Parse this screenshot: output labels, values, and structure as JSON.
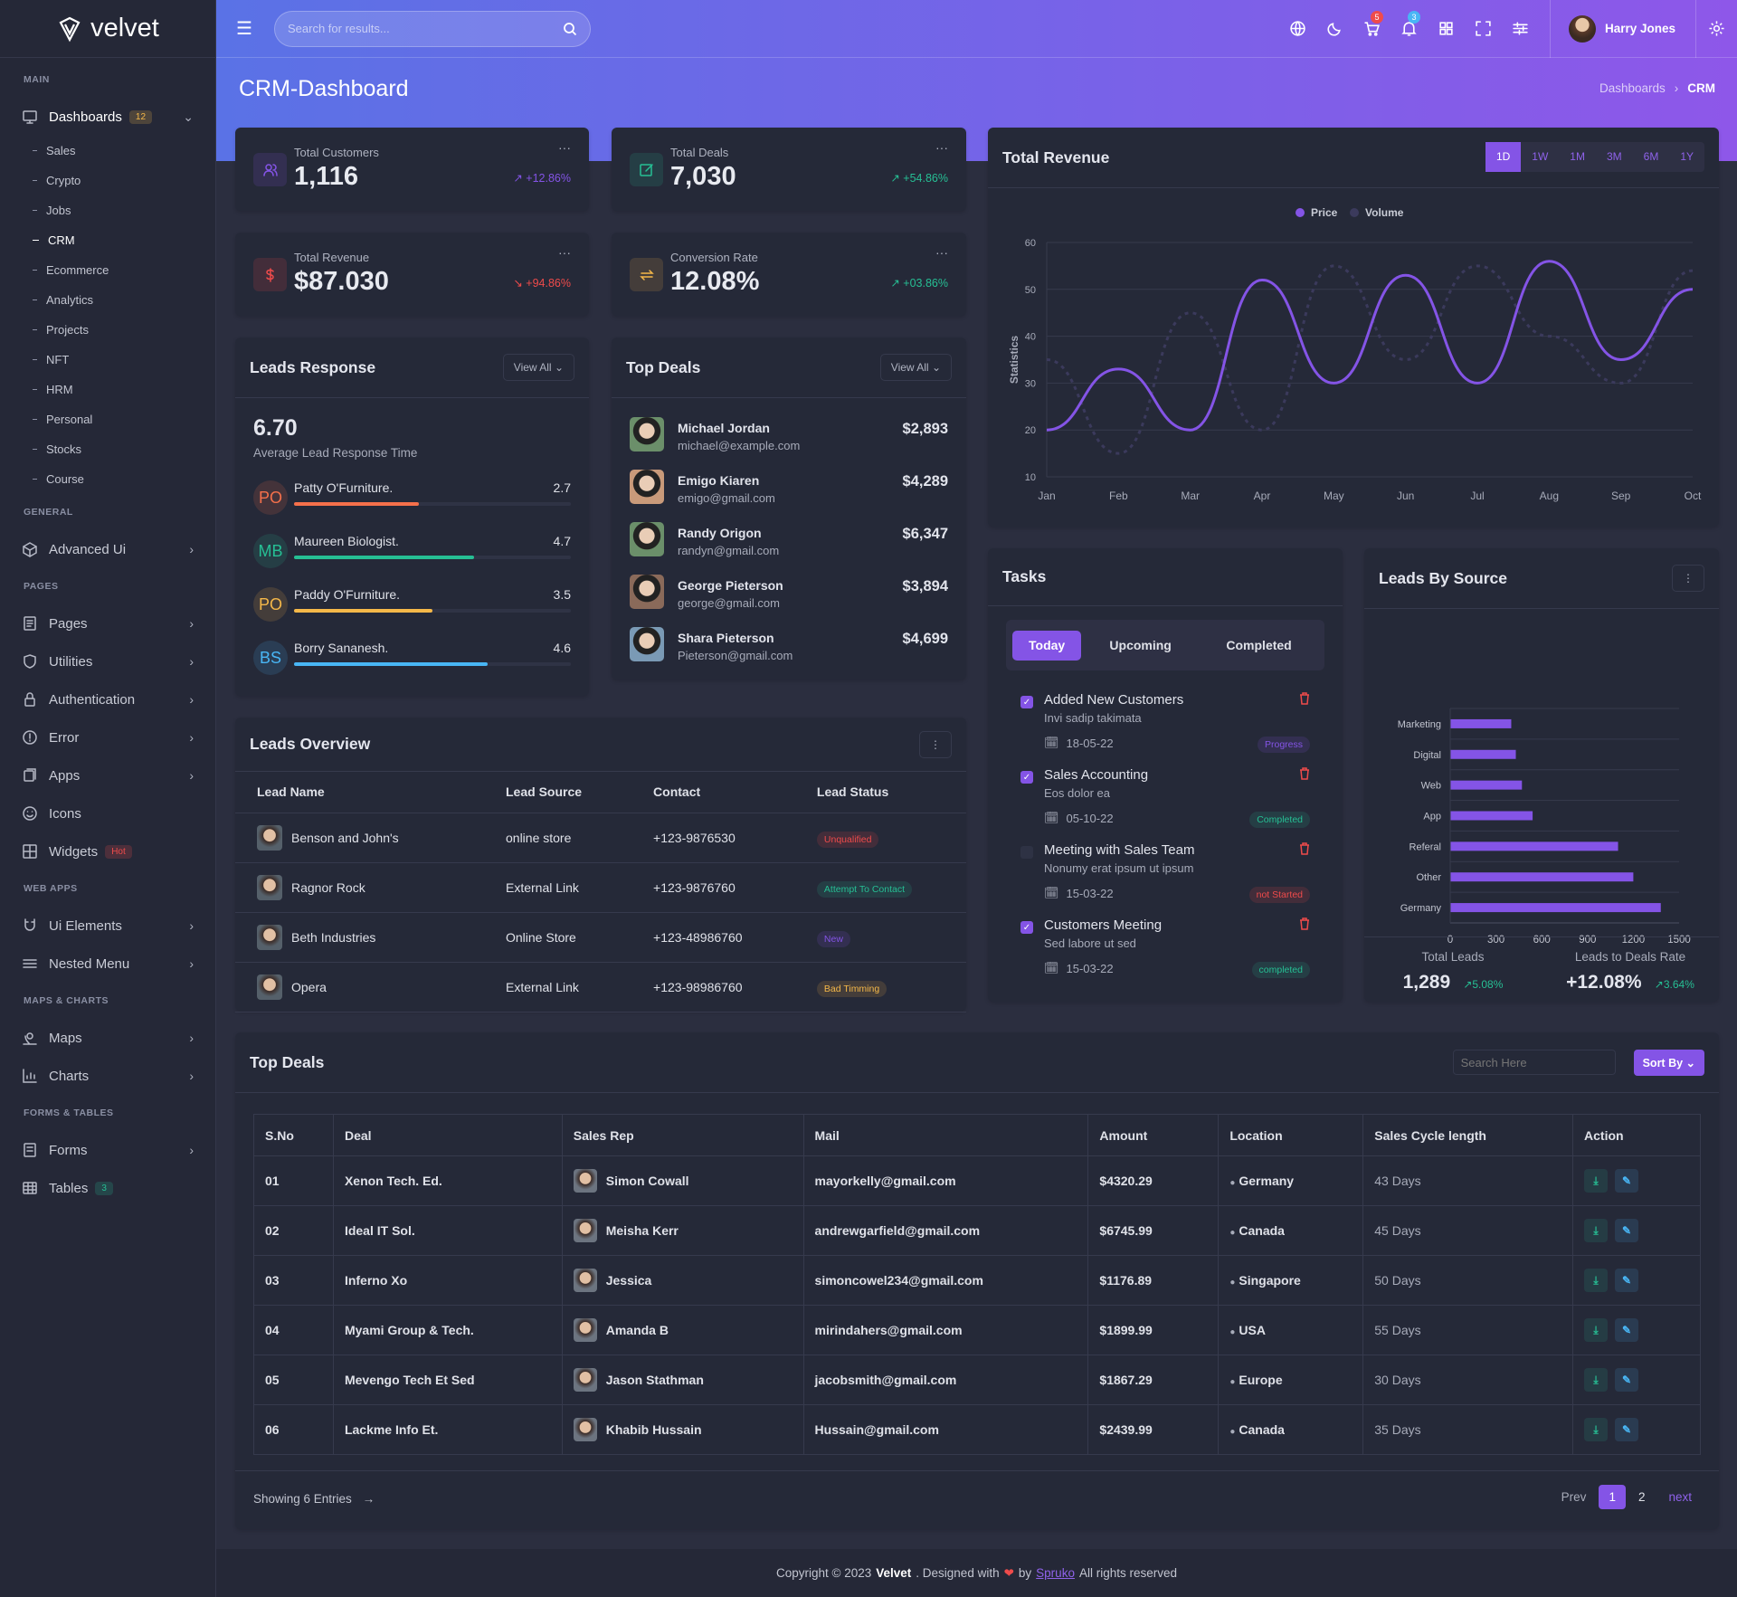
{
  "app": {
    "logo": "velvet",
    "search_placeholder": "Search for results..."
  },
  "colors": {
    "primary": "#8454e6",
    "success": "#26bf94",
    "danger": "#ef4b4b",
    "warning": "#f5b849",
    "info": "#49b6f5"
  },
  "header": {
    "icons": [
      {
        "name": "globe-icon"
      },
      {
        "name": "moon-icon"
      },
      {
        "name": "cart-icon",
        "count": "5",
        "color": "#ef4b4b"
      },
      {
        "name": "bell-icon",
        "count": "3",
        "color": "#49b6f5"
      },
      {
        "name": "apps-grid-icon"
      },
      {
        "name": "fullscreen-icon"
      },
      {
        "name": "sliders-icon"
      }
    ],
    "user": "Harry Jones"
  },
  "page": {
    "title": "CRM-Dashboard",
    "breadcrumb": [
      "Dashboards",
      "CRM"
    ]
  },
  "sidebar": [
    {
      "section": "MAIN"
    },
    {
      "label": "Dashboards",
      "icon": "monitor-icon",
      "badge": "12",
      "badge_color": "#f5b849",
      "open": true,
      "children": [
        "Sales",
        "Crypto",
        "Jobs",
        "CRM",
        "Ecommerce",
        "Analytics",
        "Projects",
        "NFT",
        "HRM",
        "Personal",
        "Stocks",
        "Course"
      ],
      "active": "CRM"
    },
    {
      "section": "GENERAL"
    },
    {
      "label": "Advanced Ui",
      "icon": "cube-icon",
      "chevron": true
    },
    {
      "section": "PAGES"
    },
    {
      "label": "Pages",
      "icon": "file-icon",
      "chevron": true
    },
    {
      "label": "Utilities",
      "icon": "shield-icon",
      "chevron": true
    },
    {
      "label": "Authentication",
      "icon": "lock-icon",
      "chevron": true
    },
    {
      "label": "Error",
      "icon": "alert-circle-icon",
      "chevron": true
    },
    {
      "label": "Apps",
      "icon": "layers-icon",
      "chevron": true
    },
    {
      "label": "Icons",
      "icon": "smile-icon"
    },
    {
      "label": "Widgets",
      "icon": "widgets-icon",
      "badge": "Hot",
      "badge_color": "#ef4b4b"
    },
    {
      "section": "WEB APPS"
    },
    {
      "label": "Ui Elements",
      "icon": "magnet-icon",
      "chevron": true
    },
    {
      "label": "Nested Menu",
      "icon": "menu-icon",
      "chevron": true
    },
    {
      "section": "MAPS & CHARTS"
    },
    {
      "label": "Maps",
      "icon": "map-pin-icon",
      "chevron": true
    },
    {
      "label": "Charts",
      "icon": "chart-icon",
      "chevron": true
    },
    {
      "section": "FORMS & TABLES"
    },
    {
      "label": "Forms",
      "icon": "form-icon",
      "chevron": true
    },
    {
      "label": "Tables",
      "icon": "table-icon",
      "badge": "3",
      "badge_color": "#26bf94"
    }
  ],
  "stats": [
    {
      "title": "Total Customers",
      "value": "1,116",
      "change": "+12.86%",
      "trend": "up",
      "color": "#8454e6",
      "icon": "users-icon"
    },
    {
      "title": "Total Deals",
      "value": "7,030",
      "change": "+54.86%",
      "trend": "up",
      "color": "#26bf94",
      "icon": "edit-icon"
    },
    {
      "title": "Total Revenue",
      "value": "$87.030",
      "change": "+94.86%",
      "trend": "down",
      "color": "#ef4b4b",
      "icon": "dollar-icon"
    },
    {
      "title": "Conversion Rate",
      "value": "12.08%",
      "change": "+03.86%",
      "trend": "up",
      "color": "#f5b849",
      "icon": "exchange-icon"
    }
  ],
  "leads_response": {
    "title": "Leads Response",
    "view_all": "View All",
    "value": "6.70",
    "caption": "Average Lead Response Time",
    "items": [
      {
        "initials": "PO",
        "name": "Patty O'Furniture.",
        "score": "2.7",
        "pct": 45,
        "color": "#f5704b"
      },
      {
        "initials": "MB",
        "name": "Maureen Biologist.",
        "score": "4.7",
        "pct": 65,
        "color": "#26bf94"
      },
      {
        "initials": "PO",
        "name": "Paddy O'Furniture.",
        "score": "3.5",
        "pct": 50,
        "color": "#f5b849"
      },
      {
        "initials": "BS",
        "name": "Borry Sananesh.",
        "score": "4.6",
        "pct": 70,
        "color": "#49b6f5"
      }
    ]
  },
  "top_deals_small": {
    "title": "Top Deals",
    "view_all": "View All",
    "items": [
      {
        "name": "Michael Jordan",
        "email": "michael@example.com",
        "amount": "$2,893"
      },
      {
        "name": "Emigo Kiaren",
        "email": "emigo@gmail.com",
        "amount": "$4,289"
      },
      {
        "name": "Randy Origon",
        "email": "randyn@gmail.com",
        "amount": "$6,347"
      },
      {
        "name": "George Pieterson",
        "email": "george@gmail.com",
        "amount": "$3,894"
      },
      {
        "name": "Shara Pieterson",
        "email": "Pieterson@gmail.com",
        "amount": "$4,699"
      }
    ]
  },
  "leads_overview": {
    "title": "Leads Overview",
    "columns": [
      "Lead Name",
      "Lead Source",
      "Contact",
      "Lead Status"
    ],
    "rows": [
      {
        "name": "Benson and John's",
        "source": "online store",
        "contact": "+123-9876530",
        "status": "Unqualified",
        "color": "#ef4b4b"
      },
      {
        "name": "Ragnor Rock",
        "source": "External Link",
        "contact": "+123-9876760",
        "status": "Attempt To Contact",
        "color": "#26bf94"
      },
      {
        "name": "Beth Industries",
        "source": "Online Store",
        "contact": "+123-48986760",
        "status": "New",
        "color": "#8454e6"
      },
      {
        "name": "Opera",
        "source": "External Link",
        "contact": "+123-98986760",
        "status": "Bad Timming",
        "color": "#f5b849"
      }
    ]
  },
  "revenue": {
    "title": "Total Revenue",
    "ranges": [
      "1D",
      "1W",
      "1M",
      "3M",
      "6M",
      "1Y"
    ],
    "active_range": "1D"
  },
  "chart_data": [
    {
      "type": "line",
      "title": "Total Revenue",
      "ylabel": "Statistics",
      "xlabel": "",
      "ylim": [
        10,
        60
      ],
      "yticks": [
        10,
        20,
        30,
        40,
        50,
        60
      ],
      "grid": true,
      "legend": "top-center",
      "categories": [
        "Jan",
        "Feb",
        "Mar",
        "Apr",
        "May",
        "Jun",
        "Jul",
        "Aug",
        "Sep",
        "Oct"
      ],
      "series": [
        {
          "name": "Price",
          "color": "#8454e6",
          "style": "solid",
          "values": [
            20,
            33,
            20,
            52,
            30,
            53,
            30,
            56,
            35,
            50
          ]
        },
        {
          "name": "Volume",
          "color": "#3b3a5c",
          "style": "dashed",
          "values": [
            35,
            15,
            45,
            20,
            55,
            35,
            55,
            40,
            30,
            54
          ]
        }
      ]
    },
    {
      "type": "bar",
      "orientation": "horizontal",
      "title": "Leads By Source",
      "xlim": [
        0,
        1500
      ],
      "xticks": [
        0,
        300,
        600,
        900,
        1200,
        1500
      ],
      "color": "#8454e6",
      "categories": [
        "Marketing",
        "Digital",
        "Web",
        "App",
        "Referal",
        "Other",
        "Germany"
      ],
      "values": [
        400,
        430,
        470,
        540,
        1100,
        1200,
        1380
      ]
    }
  ],
  "tasks": {
    "title": "Tasks",
    "tabs": [
      "Today",
      "Upcoming",
      "Completed"
    ],
    "active_tab": "Today",
    "items": [
      {
        "title": "Added New Customers",
        "sub": "Invi sadip takimata",
        "date": "18-05-22",
        "status": "Progress",
        "color": "#8454e6",
        "checked": true
      },
      {
        "title": "Sales Accounting",
        "sub": "Eos dolor ea",
        "date": "05-10-22",
        "status": "Completed",
        "color": "#26bf94",
        "checked": true
      },
      {
        "title": "Meeting with Sales Team",
        "sub": "Nonumy erat ipsum ut ipsum",
        "date": "15-03-22",
        "status": "not Started",
        "color": "#ef4b4b",
        "checked": false
      },
      {
        "title": "Customers Meeting",
        "sub": "Sed labore ut sed",
        "date": "15-03-22",
        "status": "completed",
        "color": "#26bf94",
        "checked": true
      }
    ]
  },
  "leads_source": {
    "title": "Leads By Source",
    "total_label": "Total Leads",
    "total": "1,289",
    "total_change": "5.08%",
    "rate_label": "Leads to Deals Rate",
    "rate": "+12.08%",
    "rate_change": "3.64%"
  },
  "deals_table": {
    "title": "Top Deals",
    "search_placeholder": "Search Here",
    "sort": "Sort By",
    "columns": [
      "S.No",
      "Deal",
      "Sales Rep",
      "Mail",
      "Amount",
      "Location",
      "Sales Cycle length",
      "Action"
    ],
    "rows": [
      [
        "01",
        "Xenon Tech. Ed.",
        "Simon Cowall",
        "mayorkelly@gmail.com",
        "$4320.29",
        "Germany",
        "43 Days"
      ],
      [
        "02",
        "Ideal IT Sol.",
        "Meisha Kerr",
        "andrewgarfield@gmail.com",
        "$6745.99",
        "Canada",
        "45 Days"
      ],
      [
        "03",
        "Inferno Xo",
        "Jessica",
        "simoncowel234@gmail.com",
        "$1176.89",
        "Singapore",
        "50 Days"
      ],
      [
        "04",
        "Myami Group & Tech.",
        "Amanda B",
        "mirindahers@gmail.com",
        "$1899.99",
        "USA",
        "55 Days"
      ],
      [
        "05",
        "Mevengo Tech Et Sed",
        "Jason Stathman",
        "jacobsmith@gmail.com",
        "$1867.29",
        "Europe",
        "30 Days"
      ],
      [
        "06",
        "Lackme Info Et.",
        "Khabib Hussain",
        "Hussain@gmail.com",
        "$2439.99",
        "Canada",
        "35 Days"
      ]
    ],
    "showing": "Showing 6 Entries",
    "pages": [
      "1",
      "2"
    ],
    "current_page": "1",
    "prev": "Prev",
    "next": "next"
  },
  "footer": {
    "pre": "Copyright © 2023",
    "brand": "Velvet",
    "mid": ". Designed with",
    "by": "by",
    "author": "Spruko",
    "post": "All rights reserved"
  }
}
